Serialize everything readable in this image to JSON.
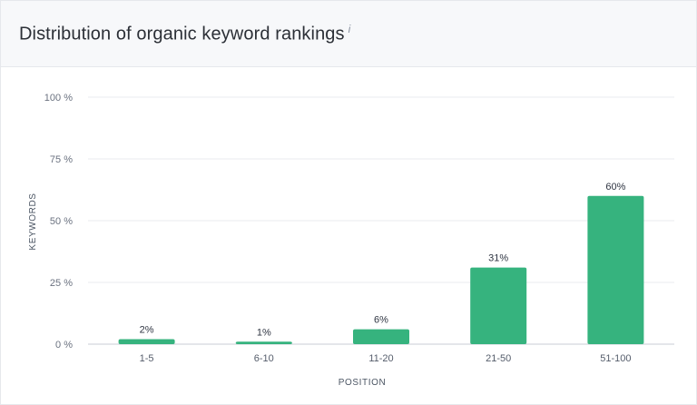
{
  "header": {
    "title": "Distribution of organic keyword rankings",
    "info_icon": "i"
  },
  "chart_data": {
    "type": "bar",
    "categories": [
      "1-5",
      "6-10",
      "11-20",
      "21-50",
      "51-100"
    ],
    "values": [
      2,
      1,
      6,
      31,
      60
    ],
    "data_labels": [
      "2%",
      "1%",
      "6%",
      "31%",
      "60%"
    ],
    "ylim": [
      0,
      100
    ],
    "yticks": [
      0,
      25,
      50,
      75,
      100
    ],
    "ytick_labels": [
      "0 %",
      "25 %",
      "50 %",
      "75 %",
      "100 %"
    ],
    "xlabel": "POSITION",
    "ylabel": "KEYWORDS",
    "grid": true,
    "bar_color": "#36b37e"
  }
}
